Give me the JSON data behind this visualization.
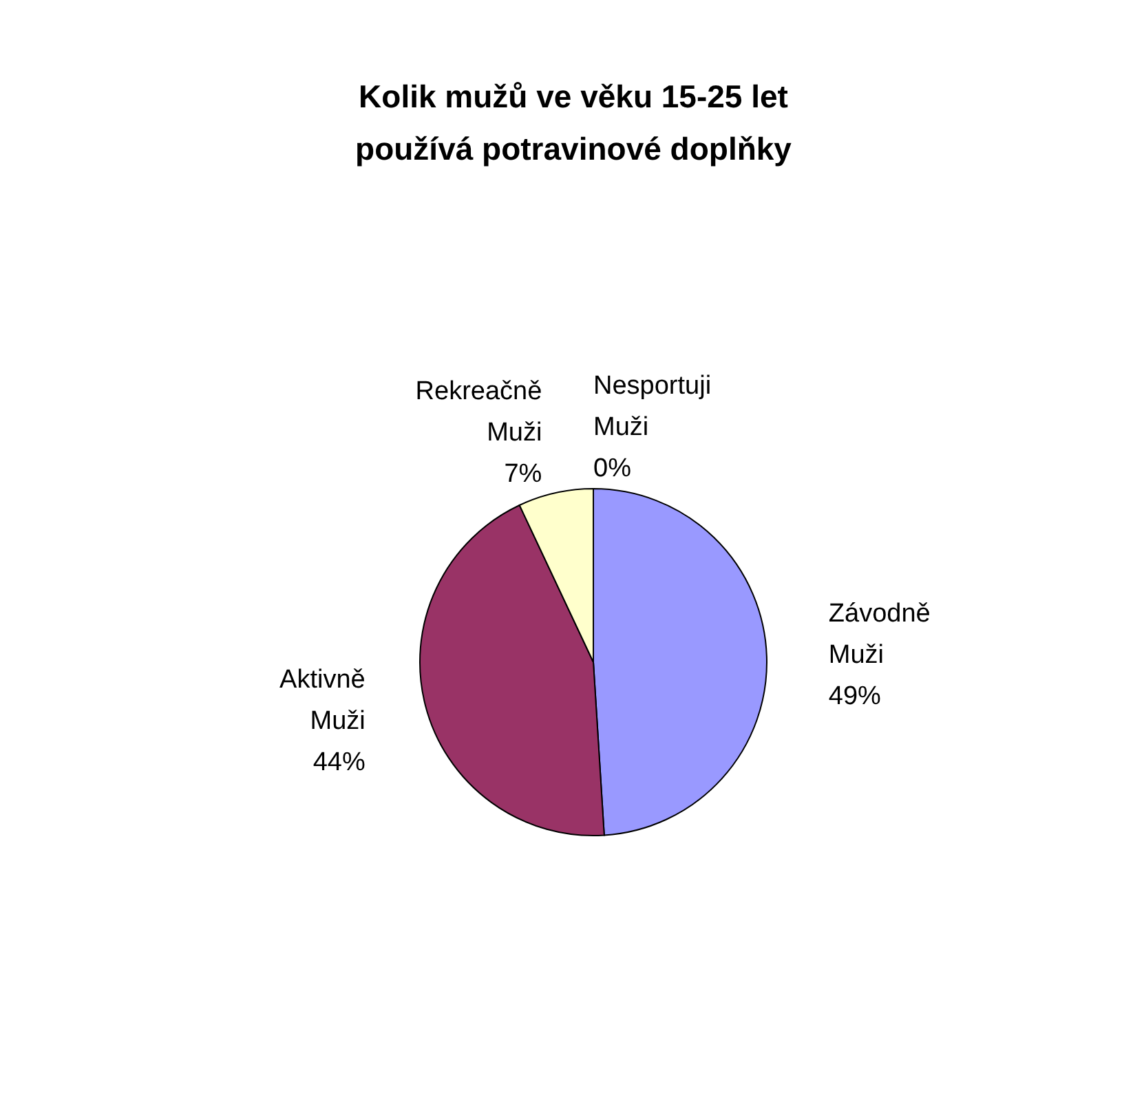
{
  "chart_data": {
    "type": "pie",
    "title": "Kolik mužů  ve věku 15-25 let používá potravinové doplňky",
    "categories": [
      "Závodně Muži",
      "Aktivně Muži",
      "Rekreačně Muži",
      "Nesportuji Muži"
    ],
    "values": [
      49,
      44,
      7,
      0
    ],
    "value_labels": [
      "49%",
      "44%",
      "7%",
      "0%"
    ],
    "colors": [
      "#9999ff",
      "#993366",
      "#ffffcc",
      "#ccffff"
    ]
  }
}
